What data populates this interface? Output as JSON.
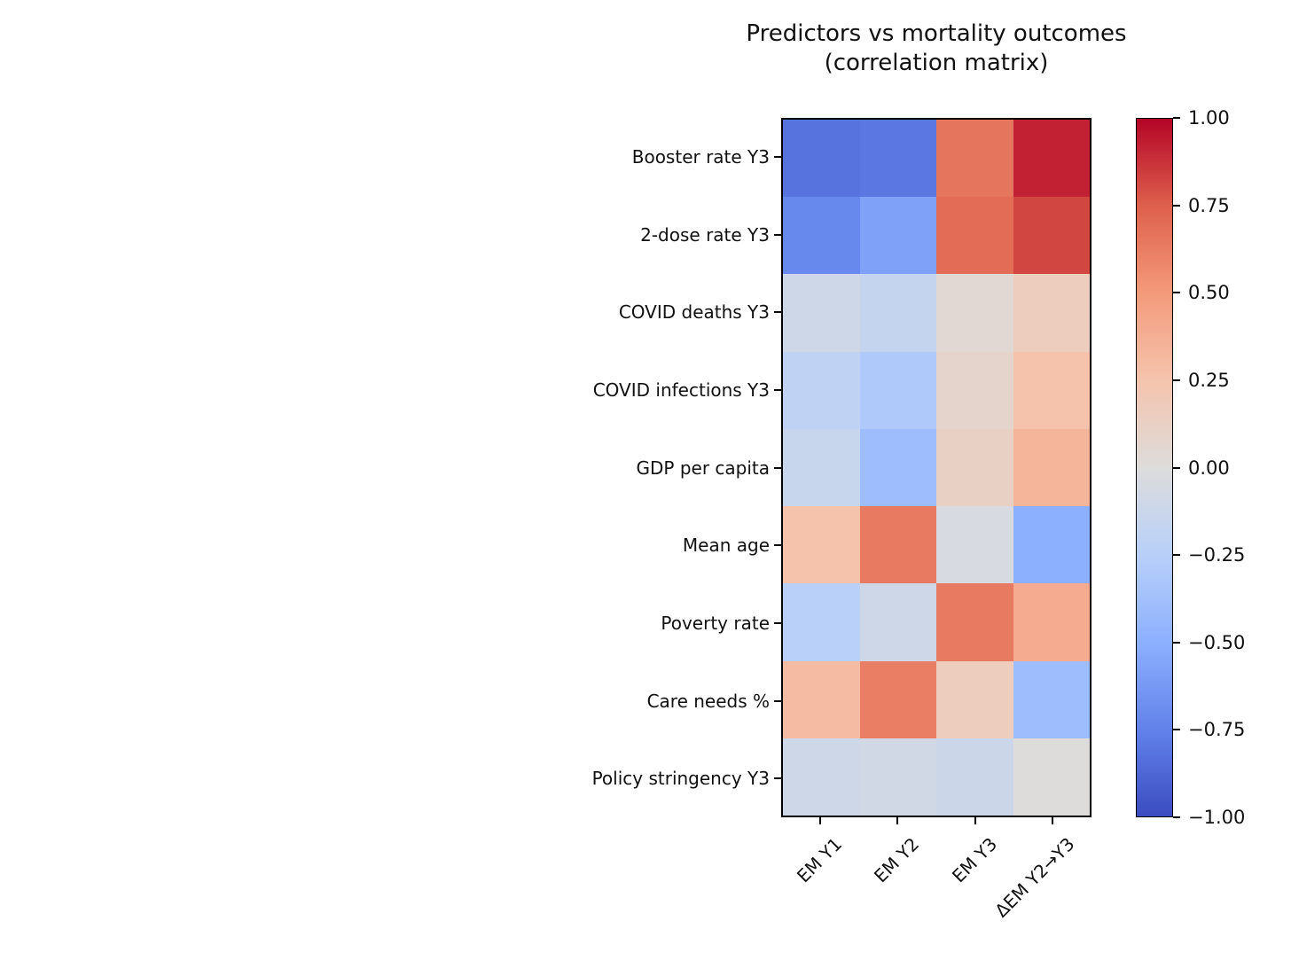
{
  "figure": {
    "title_line1": "Predictors vs mortality outcomes",
    "title_line2": "(correlation matrix)"
  },
  "chart_data": {
    "type": "heatmap",
    "title": "Predictors vs mortality outcomes (correlation matrix)",
    "rows": [
      "Booster rate Y3",
      "2-dose rate Y3",
      "COVID deaths Y3",
      "COVID infections Y3",
      "GDP per capita",
      "Mean age",
      "Poverty rate",
      "Care needs %",
      "Policy stringency Y3"
    ],
    "columns": [
      "EM Y1",
      "EM Y2",
      "EM Y3",
      "ΔEM Y2→Y3"
    ],
    "values": [
      [
        -0.82,
        -0.8,
        0.66,
        0.92
      ],
      [
        -0.72,
        -0.58,
        0.7,
        0.82
      ],
      [
        -0.1,
        -0.16,
        0.04,
        0.16
      ],
      [
        -0.2,
        -0.3,
        0.08,
        0.26
      ],
      [
        -0.15,
        -0.4,
        0.12,
        0.34
      ],
      [
        0.26,
        0.64,
        -0.04,
        -0.5
      ],
      [
        -0.24,
        -0.1,
        0.64,
        0.4
      ],
      [
        0.3,
        0.62,
        0.16,
        -0.4
      ],
      [
        -0.1,
        -0.08,
        -0.12,
        0.0
      ]
    ],
    "vmin": -1,
    "vmax": 1,
    "colormap": "coolwarm",
    "colormap_stops": [
      "#3b4cc0",
      "#6282ea",
      "#8db0fe",
      "#b8d0f9",
      "#dddcdb",
      "#f5c4ad",
      "#f49a7b",
      "#de604d",
      "#b40426"
    ],
    "colorbar_tick_labels": [
      "1.00",
      "0.75",
      "0.50",
      "0.25",
      "0.00",
      "−0.25",
      "−0.50",
      "−0.75",
      "−1.00"
    ],
    "legend_position": "right",
    "grid": false
  }
}
